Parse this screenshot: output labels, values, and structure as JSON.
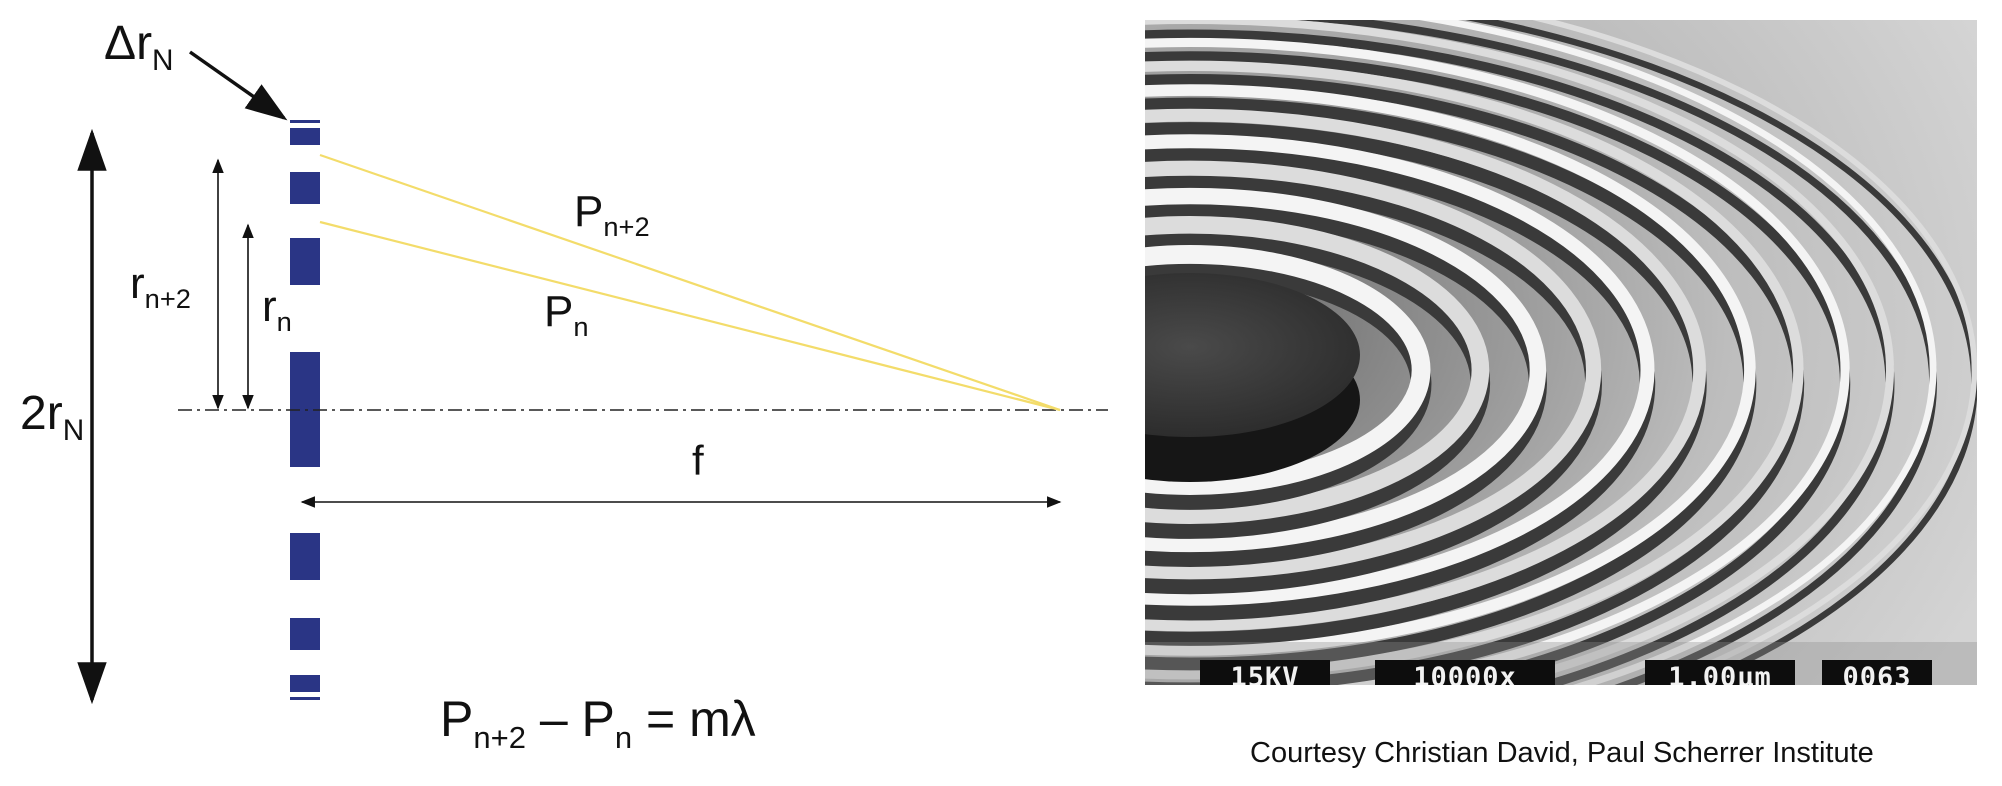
{
  "diagram": {
    "labels": {
      "delta_r": {
        "main": "Δr",
        "sub": "N"
      },
      "two_r": {
        "main": "2r",
        "sub": "N"
      },
      "r_n2": {
        "main": "r",
        "sub": "n+2"
      },
      "r_n": {
        "main": "r",
        "sub": "n"
      },
      "p_n2": {
        "main": "P",
        "sub": "n+2"
      },
      "p_n": {
        "main": "P",
        "sub": "n"
      },
      "focal": "f"
    },
    "equation": {
      "lhs_a": "P",
      "lhs_a_sub": "n+2",
      "minus": " – ",
      "lhs_b": "P",
      "lhs_b_sub": "n",
      "rhs": " = mλ"
    },
    "colors": {
      "zone": "#2a3585",
      "ray": "#f3dc6a",
      "axis": "#222222"
    }
  },
  "sem_image": {
    "scalebar": {
      "voltage": "15KV",
      "magnification": "10000x",
      "scale": "1.00μm",
      "frame": "0063"
    },
    "credit": "Courtesy Christian David, Paul Scherrer Institute"
  }
}
